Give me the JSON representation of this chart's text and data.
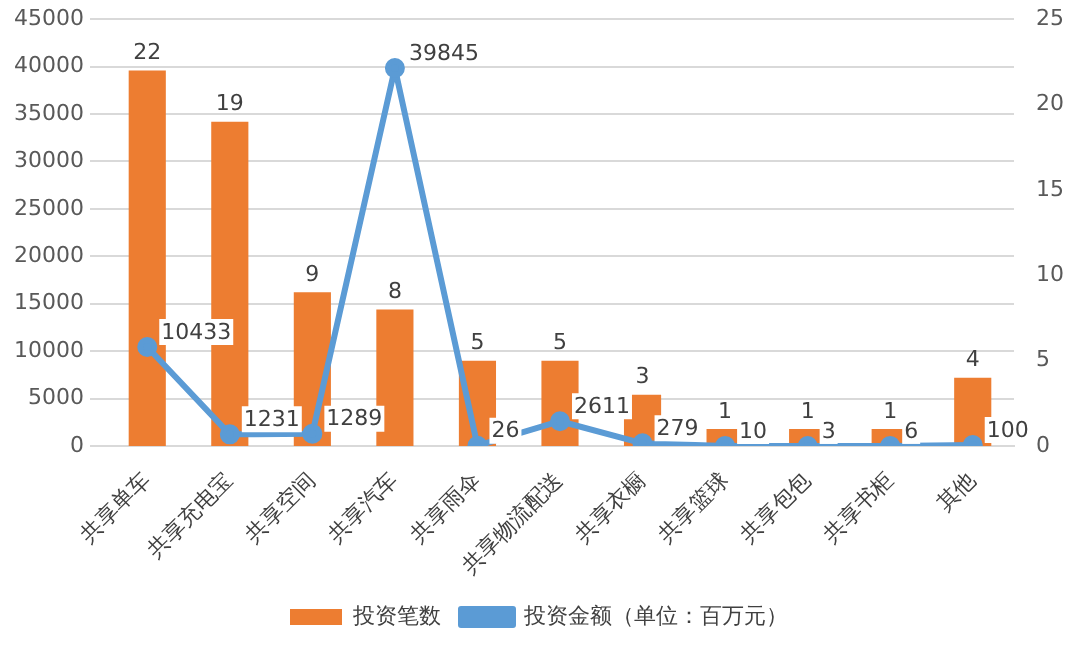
{
  "chart_data": {
    "type": "bar",
    "categories": [
      "共享单车",
      "共享充电宝",
      "共享空间",
      "共享汽车",
      "共享雨伞",
      "共享物流配送",
      "共享衣橱",
      "共享篮球",
      "共享包包",
      "共享书柜",
      "其他"
    ],
    "series": [
      {
        "name": "投资笔数",
        "color": "#ed7d31",
        "axis": "y2",
        "values": [
          22,
          19,
          9,
          8,
          5,
          5,
          3,
          1,
          1,
          1,
          4
        ]
      },
      {
        "name": "投资金额（单位：百万元）",
        "type": "line",
        "color": "#5b9bd5",
        "values": [
          10433,
          1231,
          1289,
          39845,
          26,
          2611,
          279,
          10,
          3,
          6,
          100
        ]
      }
    ],
    "ylim": [
      0,
      45000
    ],
    "yticks": [
      0,
      5000,
      10000,
      15000,
      20000,
      25000,
      30000,
      35000,
      40000,
      45000
    ],
    "y2lim": [
      0,
      25
    ],
    "y2ticks": [
      0,
      5,
      10,
      15,
      20,
      25
    ],
    "grid": "y",
    "legend": "bottom",
    "marker": "circle",
    "line_style": "solid",
    "data_labels": true
  }
}
